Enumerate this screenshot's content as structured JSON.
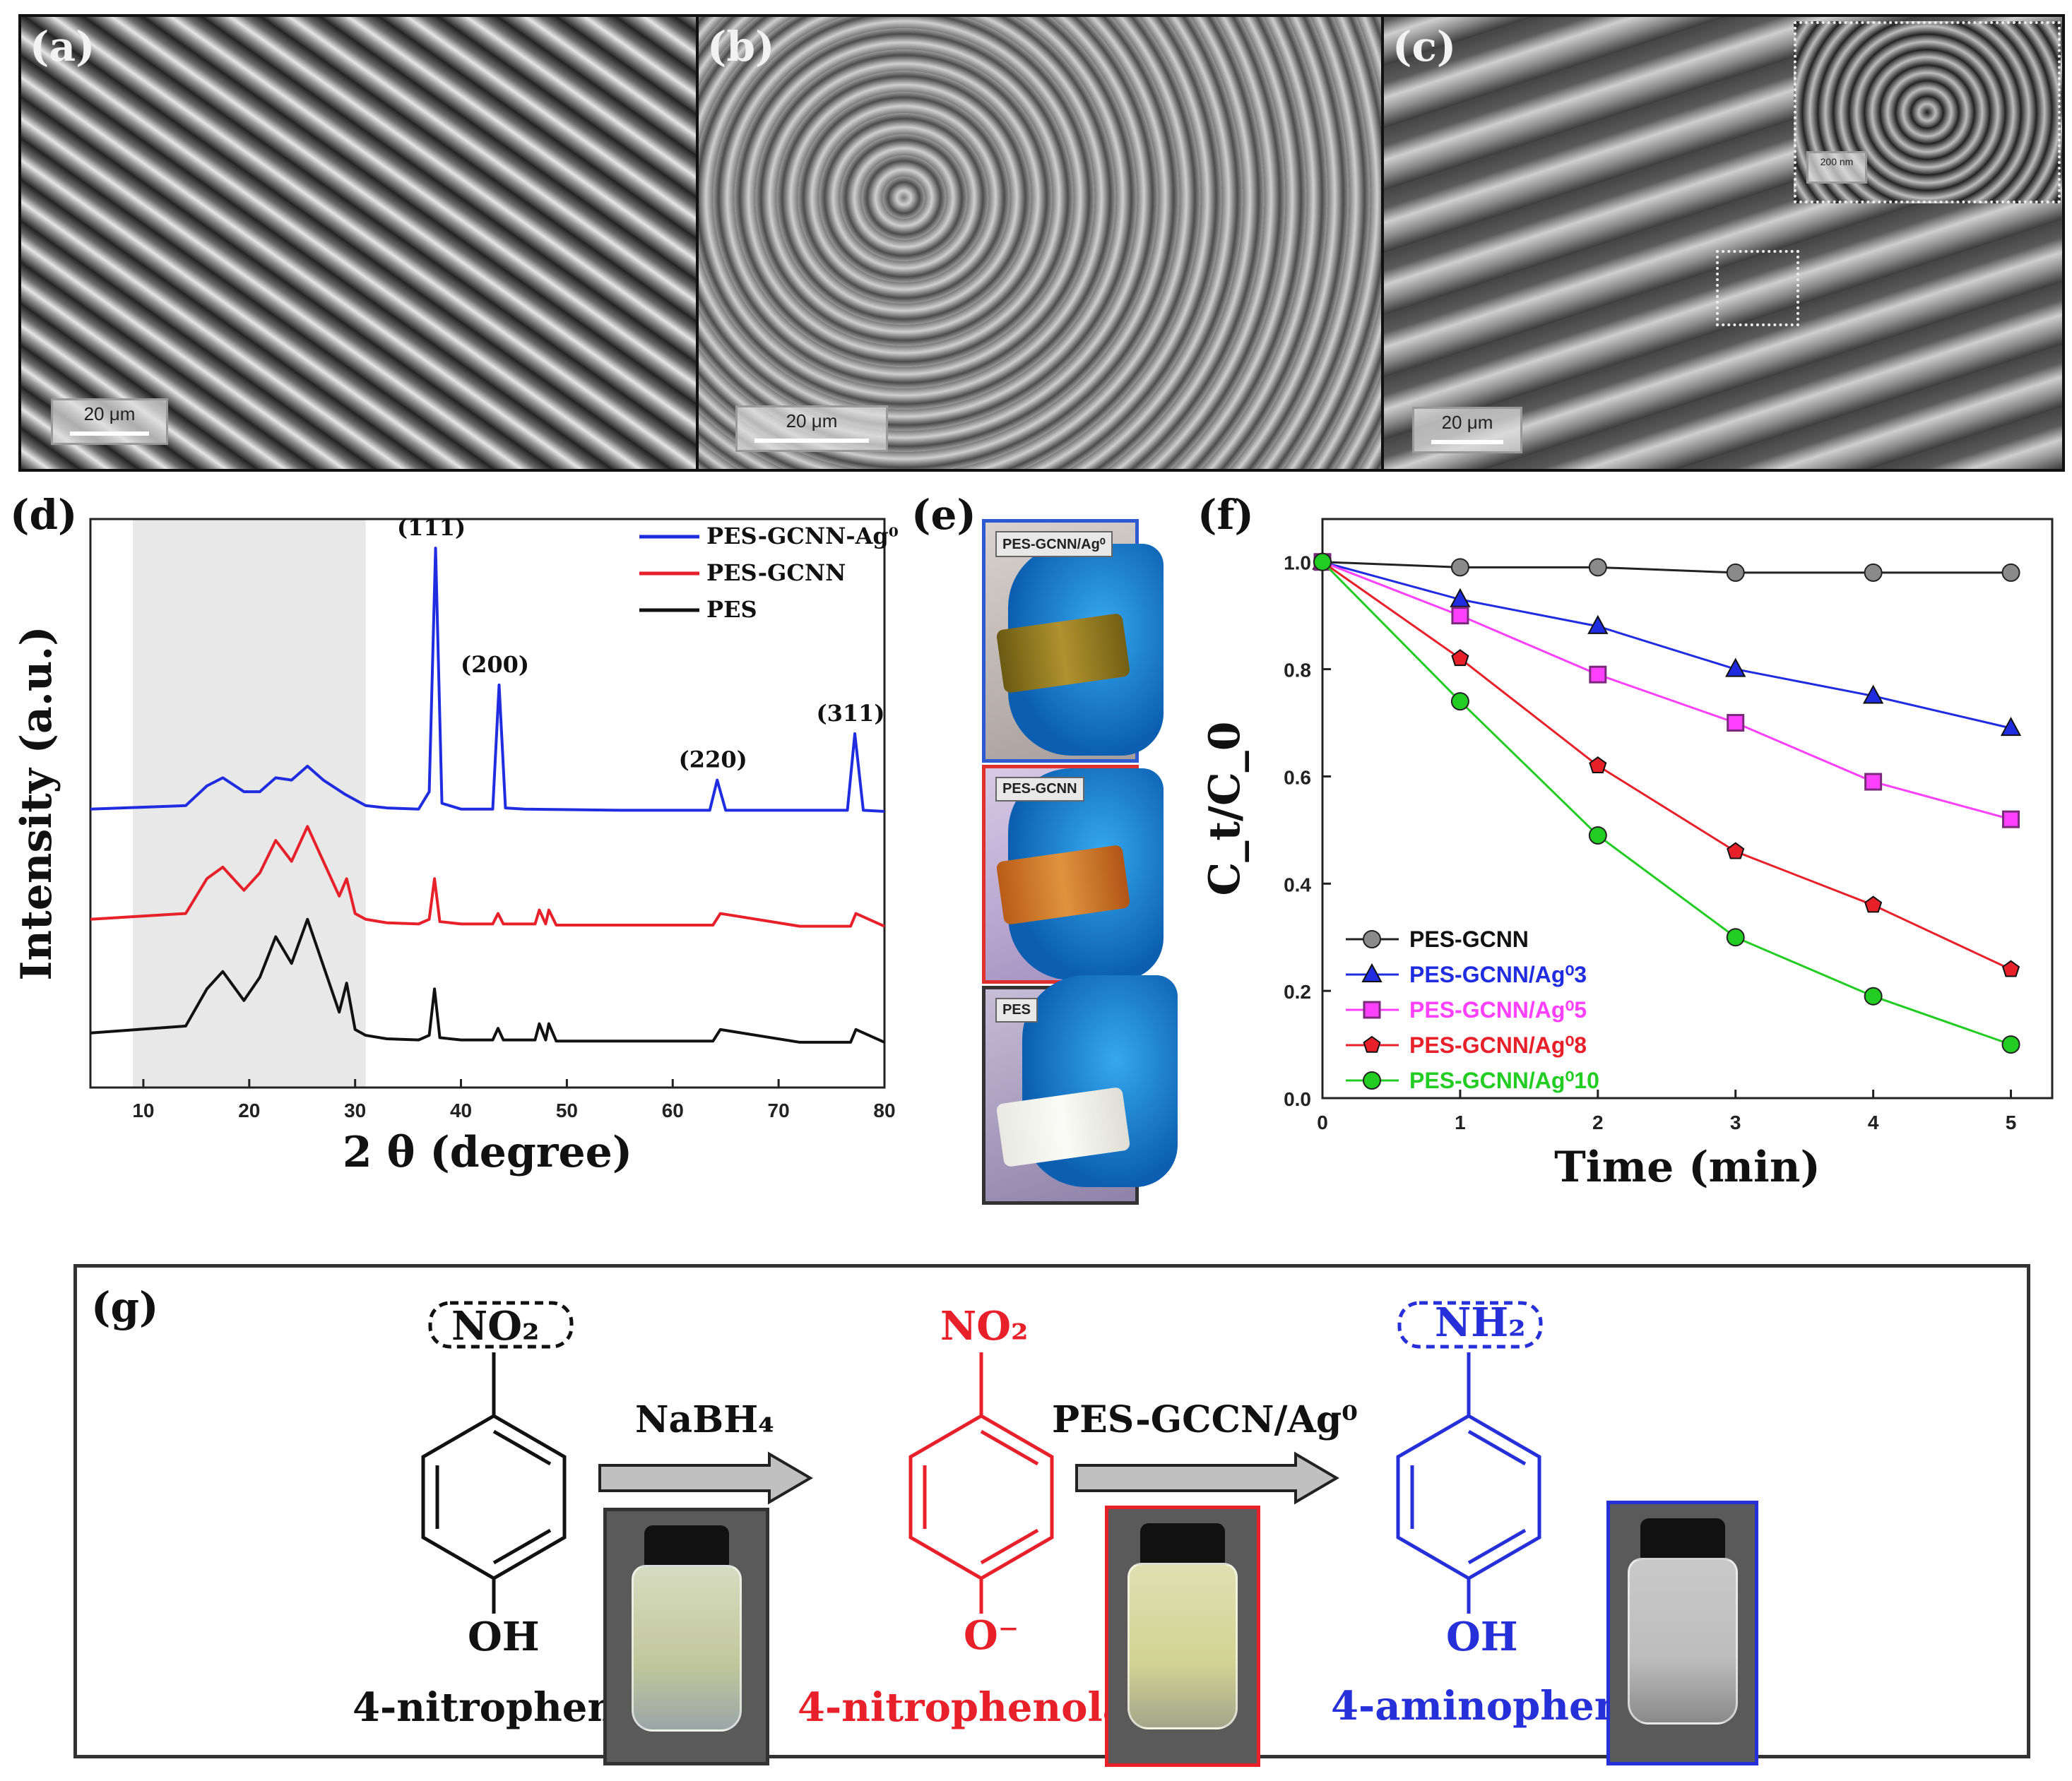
{
  "panels": {
    "a": {
      "letter": "(a)",
      "scale": "20 μm"
    },
    "b": {
      "letter": "(b)",
      "scale": "20 μm"
    },
    "c": {
      "letter": "(c)",
      "scale": "20 μm",
      "inset_scale": "200 nm"
    },
    "d": {
      "letter": "(d)"
    },
    "e": {
      "letter": "(e)",
      "photos": [
        "PES-GCNN/Ag⁰",
        "PES-GCNN",
        "PES"
      ]
    },
    "f": {
      "letter": "(f)"
    },
    "g": {
      "letter": "(g)",
      "reagent1": "NaBH₄",
      "reagent2": "PES-GCCN/Ag⁰",
      "molecules": [
        {
          "top": "NO₂",
          "bottom": "OH",
          "name": "4-nitrophenol",
          "color": "#111111"
        },
        {
          "top": "NO₂",
          "bottom": "O⁻",
          "name": "4-nitrophenolate",
          "color": "#e8202a"
        },
        {
          "top": "NH₂",
          "bottom": "OH",
          "name": "4-aminophenol",
          "color": "#2630d8"
        }
      ]
    }
  },
  "chart_data": [
    {
      "type": "line",
      "title": "",
      "xlabel": "2 θ (degree)",
      "ylabel": "Intensity (a.u.)",
      "xlim": [
        5,
        80
      ],
      "xticks": [
        10,
        20,
        30,
        40,
        50,
        60,
        70,
        80
      ],
      "shaded_region": [
        9,
        31
      ],
      "legend_position": "top-right",
      "series": [
        {
          "name": "PES-GCNN-Ag⁰",
          "color": "#1f2ce0",
          "offset": 2.0,
          "x": [
            5,
            14,
            16,
            17.5,
            19.5,
            21,
            22.5,
            24,
            25.5,
            27,
            29,
            31,
            33,
            36,
            37,
            37.6,
            38.2,
            40,
            43,
            43.6,
            44.2,
            46,
            55,
            63.5,
            64.2,
            65,
            72,
            76.5,
            77.2,
            78,
            80
          ],
          "y": [
            0.05,
            0.08,
            0.25,
            0.32,
            0.2,
            0.2,
            0.32,
            0.3,
            0.42,
            0.3,
            0.18,
            0.08,
            0.06,
            0.05,
            0.2,
            2.3,
            0.1,
            0.05,
            0.05,
            1.12,
            0.06,
            0.05,
            0.04,
            0.04,
            0.3,
            0.04,
            0.04,
            0.04,
            0.7,
            0.04,
            0.03
          ]
        },
        {
          "name": "PES-GCNN",
          "color": "#e8202a",
          "offset": 1.0,
          "x": [
            5,
            14,
            16,
            17.5,
            19.5,
            21,
            22.5,
            24,
            25.5,
            27,
            28.5,
            29.2,
            30,
            31,
            33,
            36,
            37,
            37.5,
            38,
            40,
            43,
            43.5,
            44,
            47,
            47.4,
            48,
            48.3,
            49,
            55,
            63.8,
            64.5,
            72,
            76.8,
            77.3,
            80
          ],
          "y": [
            0.1,
            0.15,
            0.45,
            0.55,
            0.35,
            0.5,
            0.78,
            0.6,
            0.9,
            0.6,
            0.3,
            0.45,
            0.15,
            0.1,
            0.07,
            0.06,
            0.1,
            0.45,
            0.08,
            0.06,
            0.06,
            0.15,
            0.06,
            0.06,
            0.18,
            0.06,
            0.18,
            0.05,
            0.05,
            0.05,
            0.15,
            0.04,
            0.04,
            0.15,
            0.04
          ]
        },
        {
          "name": "PES",
          "color": "#111111",
          "offset": 0.0,
          "x": [
            5,
            14,
            16,
            17.5,
            19.5,
            21,
            22.5,
            24,
            25.5,
            27,
            28.5,
            29.2,
            30,
            31,
            33,
            36,
            37,
            37.5,
            38,
            40,
            43,
            43.5,
            44,
            47,
            47.4,
            48,
            48.3,
            49,
            55,
            63.8,
            64.5,
            72,
            76.8,
            77.3,
            80
          ],
          "y": [
            0.12,
            0.18,
            0.5,
            0.65,
            0.4,
            0.6,
            0.95,
            0.72,
            1.1,
            0.7,
            0.3,
            0.55,
            0.15,
            0.1,
            0.07,
            0.06,
            0.1,
            0.5,
            0.08,
            0.06,
            0.06,
            0.16,
            0.06,
            0.06,
            0.2,
            0.06,
            0.2,
            0.05,
            0.05,
            0.05,
            0.15,
            0.04,
            0.04,
            0.15,
            0.04
          ]
        }
      ],
      "peak_labels": [
        {
          "x": 37.6,
          "label": "(111)"
        },
        {
          "x": 43.6,
          "label": "(200)"
        },
        {
          "x": 64.2,
          "label": "(220)"
        },
        {
          "x": 77.2,
          "label": "(311)"
        }
      ]
    },
    {
      "type": "line",
      "title": "",
      "xlabel": "Time (min)",
      "ylabel": "C_t/C_0",
      "xlim": [
        0,
        5.3
      ],
      "ylim": [
        0,
        1.08
      ],
      "xticks": [
        0,
        1,
        2,
        3,
        4,
        5
      ],
      "yticks": [
        0.0,
        0.2,
        0.4,
        0.6,
        0.8,
        1.0
      ],
      "legend_position": "bottom-left",
      "x": [
        0,
        1,
        2,
        3,
        4,
        5
      ],
      "series": [
        {
          "name": "PES-GCNN",
          "color": "#8a8a8a",
          "marker": "circle",
          "values": [
            1.0,
            0.99,
            0.99,
            0.98,
            0.98,
            0.98
          ]
        },
        {
          "name": "PES-GCNN/Ag⁰3",
          "color": "#1f2ce0",
          "marker": "triangle",
          "values": [
            1.0,
            0.93,
            0.88,
            0.8,
            0.75,
            0.69
          ]
        },
        {
          "name": "PES-GCNN/Ag⁰5",
          "color": "#ff40ff",
          "marker": "square",
          "values": [
            1.0,
            0.9,
            0.79,
            0.7,
            0.59,
            0.52
          ]
        },
        {
          "name": "PES-GCNN/Ag⁰8",
          "color": "#e8202a",
          "marker": "pentagon",
          "values": [
            1.0,
            0.82,
            0.62,
            0.46,
            0.36,
            0.24
          ]
        },
        {
          "name": "PES-GCNN/Ag⁰10",
          "color": "#22cc22",
          "marker": "circle",
          "values": [
            1.0,
            0.74,
            0.49,
            0.3,
            0.19,
            0.1
          ]
        }
      ]
    }
  ]
}
